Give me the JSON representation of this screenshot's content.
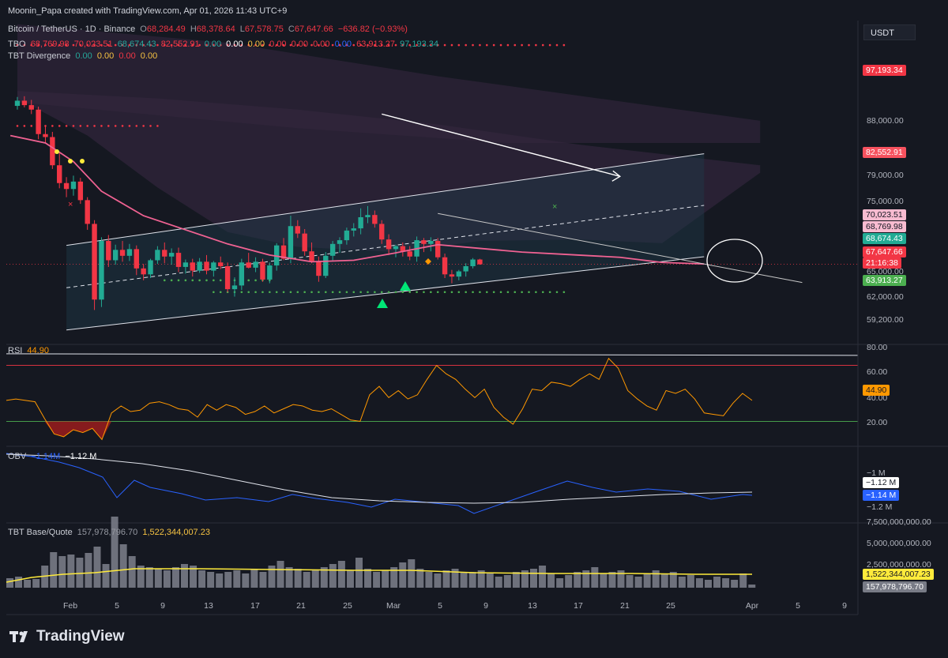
{
  "watermark": "Moonin_Papa created with TradingView.com, Apr 01, 2026 11:43 UTC+9",
  "currency_button": "USDT",
  "legend": {
    "symbol": "Bitcoin / TetherUS · 1D · Binance",
    "ohlc": {
      "o_label": "O",
      "o": "68,284.49",
      "h_label": "H",
      "h": "68,378.64",
      "l_label": "L",
      "l": "67,578.75",
      "c_label": "C",
      "c": "67,647.66",
      "chg": "−636.82 (−0.93%)"
    },
    "tbo": {
      "name": "TBO",
      "values": [
        "68,769.98",
        "70,023.51",
        "68,674.43",
        "82,552.91",
        "0.00",
        "0.00",
        "0.00",
        "0.00",
        "0.00",
        "0.00",
        "0.00",
        "63,913.27",
        "97,193.34"
      ]
    },
    "tbt_div": {
      "name": "TBT Divergence",
      "values": [
        "0.00",
        "0.00",
        "0.00",
        "0.00"
      ]
    }
  },
  "price_axis": {
    "ticks": [
      "88,000.00",
      "79,000.00",
      "75,000.00",
      "65,000.00",
      "62,000.00",
      "59,200.00"
    ],
    "tags": [
      {
        "name": "tbo-97193",
        "text": "97,193.34",
        "bg": "#f23645",
        "fg": "#ffffff",
        "price": 97193.34
      },
      {
        "name": "tbo-82552",
        "text": "82,552.91",
        "bg": "#f7525f",
        "fg": "#ffffff",
        "price": 82552.91
      },
      {
        "name": "tbo-70023",
        "text": "70,023.51",
        "bg": "#f8bbd0",
        "fg": "#131722",
        "price": 70023.51
      },
      {
        "name": "tbo-68769",
        "text": "68,769.98",
        "bg": "#f8bbd0",
        "fg": "#131722",
        "price": 68769.98
      },
      {
        "name": "tbo-68674",
        "text": "68,674.43",
        "bg": "#22ab94",
        "fg": "#ffffff",
        "price": 68674.43
      },
      {
        "name": "last-price",
        "text": "67,647.66",
        "bg": "#f23645",
        "fg": "#ffffff",
        "price": 67647.66
      },
      {
        "name": "countdown",
        "text": "21:16:38",
        "bg": "#f23645",
        "fg": "#ffffff",
        "price": 66650
      },
      {
        "name": "tbo-63913",
        "text": "63,913.27",
        "bg": "#4caf50",
        "fg": "#ffffff",
        "price": 63913.27
      }
    ]
  },
  "rsi": {
    "label": "RSI",
    "value": "44.90",
    "ticks": [
      "80.00",
      "60.00",
      "40.00",
      "20.00"
    ],
    "upper": 70,
    "lower": 30,
    "values": [
      45,
      46,
      45,
      44,
      32,
      21,
      19,
      24,
      22,
      25,
      17,
      36,
      41,
      37,
      38,
      43,
      44,
      42,
      39,
      38,
      33,
      42,
      38,
      42,
      40,
      35,
      37,
      41,
      36,
      39,
      42,
      41,
      38,
      37,
      39,
      35,
      31,
      30,
      49,
      55,
      47,
      52,
      46,
      49,
      60,
      70,
      64,
      60,
      53,
      47,
      53,
      40,
      33,
      28,
      39,
      53,
      52,
      58,
      57,
      55,
      60,
      64,
      60,
      75,
      68,
      52,
      46,
      41,
      38,
      52,
      50,
      53,
      46,
      36,
      35,
      34,
      43,
      50,
      45
    ]
  },
  "obv": {
    "label": "OBV",
    "v1": "−1.14M",
    "v2": "−1.12 M",
    "ticks": [
      "−1 M",
      "−1.2 M"
    ],
    "tag1": "−1.12 M",
    "tag2": "−1.14 M"
  },
  "volume": {
    "label": "TBT Base/Quote",
    "v1": "157,978,796.70",
    "v2": "1,522,344,007.23",
    "ticks": [
      "7,500,000,000.00",
      "5,000,000,000.00",
      "2,500,000,000.00"
    ],
    "tag_quote": "1,522,344,007.23",
    "tag_base": "157,978,796.70"
  },
  "time_axis": {
    "labels": [
      "Feb",
      "5",
      "9",
      "13",
      "17",
      "21",
      "25",
      "Mar",
      "5",
      "9",
      "13",
      "17",
      "21",
      "25",
      "Apr",
      "5",
      "9"
    ]
  },
  "chart_data": {
    "type": "candlestick",
    "title": "Bitcoin / TetherUS · 1D · Binance",
    "ylim": [
      57500,
      100500
    ],
    "candles": [
      [
        89000,
        90200,
        88500,
        89700
      ],
      [
        89700,
        90300,
        88800,
        89100
      ],
      [
        89100,
        89800,
        87900,
        88500
      ],
      [
        88500,
        88900,
        84500,
        85200
      ],
      [
        85200,
        86300,
        84000,
        84800
      ],
      [
        84800,
        85500,
        80500,
        81000
      ],
      [
        81000,
        82800,
        77900,
        78600
      ],
      [
        78600,
        79400,
        76700,
        77800
      ],
      [
        77800,
        79600,
        76900,
        78800
      ],
      [
        78800,
        79300,
        75800,
        76300
      ],
      [
        76300,
        76700,
        72300,
        73100
      ],
      [
        73100,
        73600,
        61500,
        62900
      ],
      [
        62900,
        71300,
        61900,
        70800
      ],
      [
        70800,
        71600,
        67300,
        68200
      ],
      [
        68200,
        70300,
        67600,
        69600
      ],
      [
        69600,
        70800,
        68000,
        68800
      ],
      [
        68800,
        70400,
        68100,
        69700
      ],
      [
        69700,
        70200,
        66200,
        67100
      ],
      [
        67100,
        67700,
        65500,
        66300
      ],
      [
        66300,
        68400,
        65800,
        68200
      ],
      [
        68200,
        70100,
        67700,
        69600
      ],
      [
        69600,
        70600,
        67800,
        68700
      ],
      [
        68700,
        69800,
        67600,
        69200
      ],
      [
        69200,
        69900,
        66600,
        67300
      ],
      [
        67300,
        68300,
        66400,
        67900
      ],
      [
        67900,
        68400,
        66000,
        66800
      ],
      [
        66800,
        68500,
        66500,
        68000
      ],
      [
        68000,
        68900,
        66300,
        66800
      ],
      [
        66800,
        68100,
        66000,
        67900
      ],
      [
        67900,
        68700,
        67000,
        67400
      ],
      [
        67400,
        67900,
        63900,
        64300
      ],
      [
        64300,
        65900,
        63300,
        64800
      ],
      [
        64800,
        68400,
        64200,
        67900
      ],
      [
        67900,
        69200,
        67100,
        67200
      ],
      [
        67200,
        68600,
        66600,
        68000
      ],
      [
        68000,
        68400,
        65300,
        65600
      ],
      [
        65600,
        67900,
        65100,
        67500
      ],
      [
        67500,
        70500,
        66800,
        70200
      ],
      [
        70200,
        71200,
        68200,
        68400
      ],
      [
        68400,
        74200,
        67800,
        72800
      ],
      [
        72800,
        73600,
        71200,
        71800
      ],
      [
        71800,
        72400,
        68800,
        69400
      ],
      [
        69400,
        70600,
        67800,
        68100
      ],
      [
        68100,
        68700,
        65300,
        66100
      ],
      [
        66100,
        69300,
        65800,
        68800
      ],
      [
        68800,
        70800,
        68200,
        70400
      ],
      [
        70400,
        71300,
        69200,
        70900
      ],
      [
        70900,
        72600,
        70300,
        72200
      ],
      [
        72200,
        73200,
        71400,
        72500
      ],
      [
        72500,
        75200,
        71700,
        74000
      ],
      [
        74000,
        75500,
        73200,
        74300
      ],
      [
        74300,
        74900,
        72600,
        73100
      ],
      [
        73100,
        73600,
        70400,
        71000
      ],
      [
        71000,
        71700,
        68900,
        69700
      ],
      [
        69700,
        70300,
        68600,
        70100
      ],
      [
        70100,
        70600,
        68700,
        69400
      ],
      [
        69400,
        70100,
        68200,
        68700
      ],
      [
        68700,
        71400,
        68000,
        70900
      ],
      [
        70900,
        71200,
        69300,
        70400
      ],
      [
        70400,
        71300,
        69400,
        70800
      ],
      [
        70800,
        71200,
        68300,
        68600
      ],
      [
        68600,
        69100,
        65800,
        66300
      ],
      [
        66300,
        66900,
        65100,
        66000
      ],
      [
        66000,
        66900,
        65500,
        66700
      ],
      [
        66700,
        67800,
        66000,
        67400
      ],
      [
        67400,
        68500,
        67100,
        68300
      ],
      [
        68300,
        68400,
        67600,
        67650
      ]
    ],
    "channel_upper": [
      [
        7,
        70200
      ],
      [
        98,
        82552.91
      ]
    ],
    "channel_lower": [
      [
        7,
        58800
      ],
      [
        98,
        68674.43
      ]
    ],
    "channel_mid": [
      [
        7,
        64500
      ],
      [
        98,
        75600
      ]
    ],
    "ema": [
      [
        -1,
        85000
      ],
      [
        4,
        84000
      ],
      [
        8,
        81500
      ],
      [
        12,
        77500
      ],
      [
        18,
        74200
      ],
      [
        24,
        72300
      ],
      [
        30,
        70400
      ],
      [
        36,
        68900
      ],
      [
        42,
        68000
      ],
      [
        48,
        68200
      ],
      [
        54,
        69200
      ],
      [
        60,
        70300
      ],
      [
        66,
        69800
      ],
      [
        72,
        69300
      ],
      [
        78,
        69000
      ],
      [
        86,
        68600
      ],
      [
        92,
        67900
      ],
      [
        98,
        67700
      ]
    ],
    "red_dots_top": {
      "price": 97193.34,
      "from": 0,
      "to": 78
    },
    "red_dots_2": {
      "price": 86300,
      "from": 0,
      "to": 20
    },
    "green_dots": {
      "price": 63913.27,
      "from": 28,
      "to": 78
    },
    "green_dots_2": {
      "price": 65500,
      "from": 21,
      "to": 36
    },
    "arrow_line": [
      [
        52,
        87900
      ],
      [
        86,
        79500
      ]
    ],
    "downtrend_line": [
      [
        60,
        74500
      ],
      [
        112,
        65200
      ]
    ]
  }
}
